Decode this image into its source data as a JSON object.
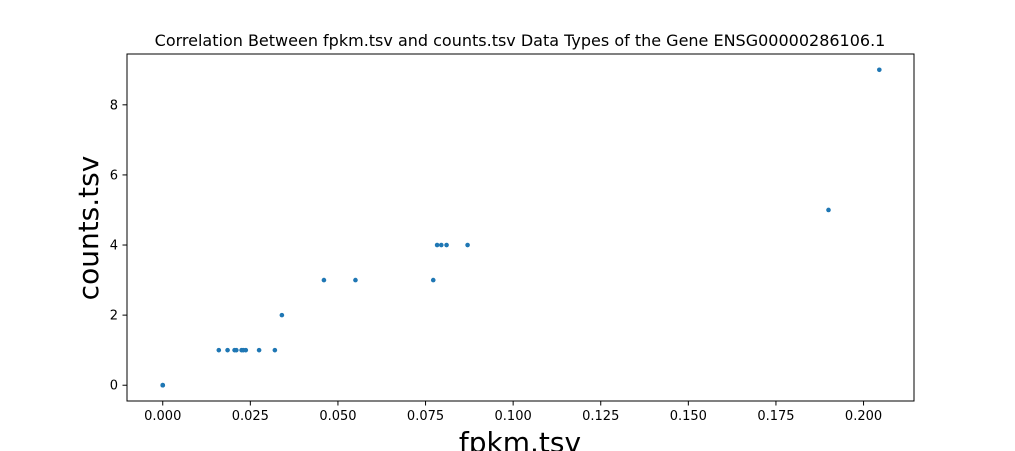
{
  "chart_data": {
    "type": "scatter",
    "title": "Correlation Between fpkm.tsv and counts.tsv Data Types of the Gene ENSG00000286106.1",
    "xlabel": "fpkm.tsv",
    "ylabel": "counts.tsv",
    "xlim": [
      -0.0102,
      0.2144
    ],
    "ylim": [
      -0.45,
      9.45
    ],
    "xticks": [
      0.0,
      0.025,
      0.05,
      0.075,
      0.1,
      0.125,
      0.15,
      0.175,
      0.2
    ],
    "xtick_labels": [
      "0.000",
      "0.025",
      "0.050",
      "0.075",
      "0.100",
      "0.125",
      "0.150",
      "0.175",
      "0.200"
    ],
    "yticks": [
      0,
      2,
      4,
      6,
      8
    ],
    "ytick_labels": [
      "0",
      "2",
      "4",
      "6",
      "8"
    ],
    "grid": false,
    "point_color": "#1f77b4",
    "points": [
      {
        "x": 0.0,
        "y": 0
      },
      {
        "x": 0.0,
        "y": 0
      },
      {
        "x": 0.0,
        "y": 0
      },
      {
        "x": 0.016,
        "y": 1
      },
      {
        "x": 0.0185,
        "y": 1
      },
      {
        "x": 0.0205,
        "y": 1
      },
      {
        "x": 0.021,
        "y": 1
      },
      {
        "x": 0.0225,
        "y": 1
      },
      {
        "x": 0.023,
        "y": 1
      },
      {
        "x": 0.0237,
        "y": 1
      },
      {
        "x": 0.0275,
        "y": 1
      },
      {
        "x": 0.032,
        "y": 1
      },
      {
        "x": 0.034,
        "y": 2
      },
      {
        "x": 0.046,
        "y": 3
      },
      {
        "x": 0.055,
        "y": 3
      },
      {
        "x": 0.0772,
        "y": 3
      },
      {
        "x": 0.0783,
        "y": 4
      },
      {
        "x": 0.0795,
        "y": 4
      },
      {
        "x": 0.081,
        "y": 4
      },
      {
        "x": 0.087,
        "y": 4
      },
      {
        "x": 0.19,
        "y": 5
      },
      {
        "x": 0.2045,
        "y": 9
      }
    ]
  }
}
